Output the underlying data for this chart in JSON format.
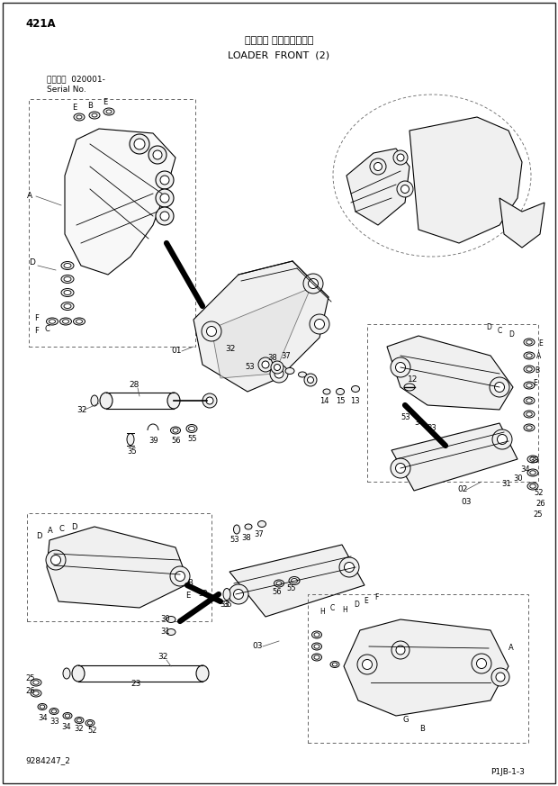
{
  "page_id": "421A",
  "title_japanese": "ローダコ フロント（２）",
  "title_english": "LOADER  FRONT  (2)",
  "serial_line1": "適用号機  020001-",
  "serial_line2": "Serial No.",
  "bottom_left": "9284247_2",
  "bottom_right": "P1JB-1-3",
  "bg_color": "#ffffff",
  "line_color": "#000000",
  "dash_color": "#666666",
  "text_color": "#000000",
  "fig_width": 6.2,
  "fig_height": 8.73,
  "dpi": 100
}
